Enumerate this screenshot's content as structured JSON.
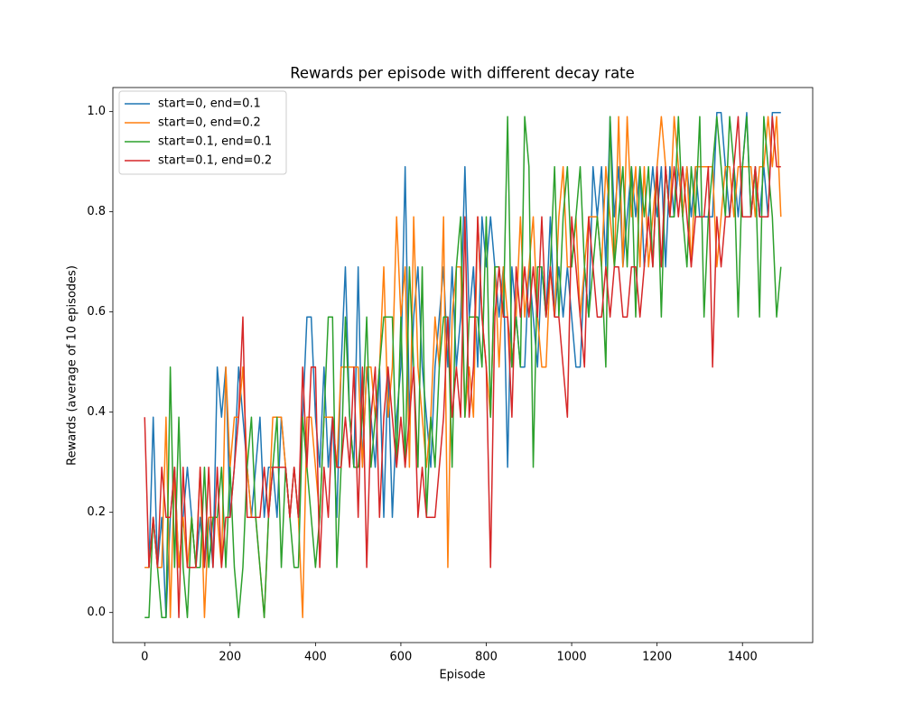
{
  "chart_data": {
    "type": "line",
    "title": "Rewards per episode with different decay rate",
    "xlabel": "Episode",
    "ylabel": "Rewards (average of 10 episodes)",
    "x": [
      0,
      10,
      20,
      30,
      40,
      50,
      60,
      70,
      80,
      90,
      100,
      110,
      120,
      130,
      140,
      150,
      160,
      170,
      180,
      190,
      200,
      210,
      220,
      230,
      240,
      250,
      260,
      270,
      280,
      290,
      300,
      310,
      320,
      330,
      340,
      350,
      360,
      370,
      380,
      390,
      400,
      410,
      420,
      430,
      440,
      450,
      460,
      470,
      480,
      490,
      500,
      510,
      520,
      530,
      540,
      550,
      560,
      570,
      580,
      590,
      600,
      610,
      620,
      630,
      640,
      650,
      660,
      670,
      680,
      690,
      700,
      710,
      720,
      730,
      740,
      750,
      760,
      770,
      780,
      790,
      800,
      810,
      820,
      830,
      840,
      850,
      860,
      870,
      880,
      890,
      900,
      910,
      920,
      930,
      940,
      950,
      960,
      970,
      980,
      990,
      1000,
      1010,
      1020,
      1030,
      1040,
      1050,
      1060,
      1070,
      1080,
      1090,
      1100,
      1110,
      1120,
      1130,
      1140,
      1150,
      1160,
      1170,
      1180,
      1190,
      1200,
      1210,
      1220,
      1230,
      1240,
      1250,
      1260,
      1270,
      1280,
      1290,
      1300,
      1310,
      1320,
      1330,
      1340,
      1350,
      1360,
      1370,
      1380,
      1390,
      1400,
      1410,
      1420,
      1430,
      1440,
      1450,
      1460,
      1470,
      1480,
      1490
    ],
    "series": [
      {
        "name": "start=0, end=0.1",
        "color": "#1f77b4",
        "values": [
          0.09,
          0.09,
          0.39,
          0.09,
          0.19,
          -0.01,
          0.19,
          0.29,
          0.09,
          0.19,
          0.29,
          0.19,
          0.09,
          0.19,
          0.09,
          0.19,
          0.09,
          0.49,
          0.39,
          0.49,
          0.19,
          0.29,
          0.49,
          0.39,
          0.29,
          0.19,
          0.29,
          0.39,
          0.19,
          0.29,
          0.29,
          0.19,
          0.39,
          0.29,
          0.19,
          0.29,
          0.19,
          0.39,
          0.59,
          0.59,
          0.39,
          0.29,
          0.49,
          0.29,
          0.39,
          0.19,
          0.49,
          0.69,
          0.39,
          0.29,
          0.69,
          0.29,
          0.49,
          0.39,
          0.29,
          0.49,
          0.19,
          0.49,
          0.19,
          0.39,
          0.49,
          0.89,
          0.39,
          0.59,
          0.69,
          0.49,
          0.39,
          0.29,
          0.49,
          0.59,
          0.69,
          0.49,
          0.69,
          0.49,
          0.59,
          0.89,
          0.59,
          0.69,
          0.49,
          0.79,
          0.69,
          0.79,
          0.69,
          0.59,
          0.69,
          0.29,
          0.69,
          0.59,
          0.49,
          0.49,
          0.69,
          0.59,
          0.49,
          0.69,
          0.59,
          0.79,
          0.59,
          0.69,
          0.59,
          0.69,
          0.59,
          0.49,
          0.49,
          0.69,
          0.59,
          0.89,
          0.79,
          0.89,
          0.69,
          0.99,
          0.79,
          0.89,
          0.69,
          0.79,
          0.89,
          0.79,
          0.89,
          0.69,
          0.79,
          0.89,
          0.79,
          0.89,
          0.69,
          0.89,
          0.79,
          0.89,
          0.79,
          0.89,
          0.79,
          0.89,
          0.79,
          0.79,
          0.79,
          0.79,
          0.998,
          0.998,
          0.89,
          0.79,
          0.89,
          0.79,
          0.89,
          0.998,
          0.79,
          0.89,
          0.79,
          0.89,
          0.79,
          0.998,
          0.998,
          0.998
        ]
      },
      {
        "name": "start=0, end=0.2",
        "color": "#ff7f0e",
        "values": [
          0.09,
          0.09,
          0.19,
          0.09,
          0.09,
          0.39,
          -0.01,
          0.29,
          0.09,
          0.19,
          0.09,
          0.19,
          0.09,
          0.29,
          -0.01,
          0.19,
          0.19,
          0.19,
          0.09,
          0.49,
          0.29,
          0.39,
          0.39,
          0.49,
          0.29,
          0.19,
          0.19,
          0.09,
          -0.01,
          0.19,
          0.39,
          0.39,
          0.39,
          0.29,
          0.19,
          0.29,
          0.19,
          -0.01,
          0.39,
          0.39,
          0.29,
          0.19,
          0.39,
          0.39,
          0.39,
          0.29,
          0.49,
          0.49,
          0.49,
          0.49,
          0.49,
          0.29,
          0.49,
          0.49,
          0.39,
          0.49,
          0.69,
          0.39,
          0.49,
          0.79,
          0.59,
          0.69,
          0.29,
          0.79,
          0.49,
          0.39,
          0.29,
          0.39,
          0.59,
          0.49,
          0.79,
          0.09,
          0.59,
          0.69,
          0.69,
          0.39,
          0.49,
          0.39,
          0.79,
          0.59,
          0.49,
          0.39,
          0.69,
          0.49,
          0.69,
          0.59,
          0.49,
          0.59,
          0.79,
          0.59,
          0.69,
          0.79,
          0.59,
          0.49,
          0.49,
          0.69,
          0.59,
          0.79,
          0.89,
          0.69,
          0.69,
          0.79,
          0.59,
          0.69,
          0.79,
          0.79,
          0.79,
          0.69,
          0.89,
          0.79,
          0.69,
          0.99,
          0.69,
          0.99,
          0.79,
          0.89,
          0.69,
          0.89,
          0.69,
          0.79,
          0.89,
          0.99,
          0.89,
          0.79,
          0.99,
          0.89,
          0.79,
          0.89,
          0.69,
          0.89,
          0.89,
          0.89,
          0.89,
          0.89,
          0.69,
          0.79,
          0.89,
          0.89,
          0.79,
          0.89,
          0.89,
          0.89,
          0.89,
          0.79,
          0.89,
          0.89,
          0.99,
          0.89,
          0.99,
          0.79
        ]
      },
      {
        "name": "start=0.1, end=0.1",
        "color": "#2ca02c",
        "values": [
          -0.01,
          -0.01,
          0.19,
          0.09,
          -0.01,
          -0.01,
          0.49,
          0.09,
          0.39,
          0.09,
          -0.01,
          0.19,
          0.09,
          0.09,
          0.29,
          0.09,
          0.19,
          0.19,
          0.29,
          0.09,
          0.29,
          0.09,
          -0.01,
          0.09,
          0.29,
          0.39,
          0.19,
          0.09,
          -0.01,
          0.19,
          0.29,
          0.39,
          0.09,
          0.29,
          0.19,
          0.09,
          0.09,
          0.39,
          0.29,
          0.19,
          0.09,
          0.19,
          0.39,
          0.59,
          0.59,
          0.09,
          0.29,
          0.59,
          0.39,
          0.29,
          0.29,
          0.39,
          0.59,
          0.29,
          0.39,
          0.49,
          0.59,
          0.59,
          0.59,
          0.29,
          0.59,
          0.29,
          0.69,
          0.49,
          0.29,
          0.69,
          0.19,
          0.39,
          0.29,
          0.49,
          0.59,
          0.59,
          0.29,
          0.69,
          0.79,
          0.39,
          0.59,
          0.59,
          0.59,
          0.49,
          0.79,
          0.39,
          0.69,
          0.69,
          0.59,
          0.99,
          0.49,
          0.59,
          0.49,
          0.99,
          0.89,
          0.29,
          0.69,
          0.69,
          0.59,
          0.69,
          0.89,
          0.59,
          0.79,
          0.89,
          0.69,
          0.79,
          0.89,
          0.69,
          0.59,
          0.69,
          0.79,
          0.69,
          0.49,
          0.99,
          0.69,
          0.79,
          0.89,
          0.69,
          0.89,
          0.59,
          0.89,
          0.79,
          0.89,
          0.69,
          0.89,
          0.59,
          0.89,
          0.79,
          0.79,
          0.99,
          0.79,
          0.69,
          0.89,
          0.79,
          0.99,
          0.59,
          0.79,
          0.89,
          0.99,
          0.89,
          0.79,
          0.99,
          0.89,
          0.59,
          0.89,
          0.99,
          0.79,
          0.89,
          0.59,
          0.99,
          0.89,
          0.79,
          0.59,
          0.69
        ]
      },
      {
        "name": "start=0.1, end=0.2",
        "color": "#d62728",
        "values": [
          0.39,
          0.09,
          0.19,
          0.09,
          0.29,
          0.19,
          0.19,
          0.29,
          -0.01,
          0.29,
          0.09,
          0.09,
          0.09,
          0.29,
          0.09,
          0.29,
          0.09,
          0.29,
          0.09,
          0.19,
          0.19,
          0.29,
          0.39,
          0.59,
          0.19,
          0.19,
          0.19,
          0.19,
          0.29,
          0.19,
          0.29,
          0.29,
          0.29,
          0.29,
          0.19,
          0.29,
          0.19,
          0.49,
          0.29,
          0.49,
          0.49,
          0.09,
          0.29,
          0.19,
          0.39,
          0.29,
          0.29,
          0.39,
          0.29,
          0.49,
          0.19,
          0.49,
          0.09,
          0.39,
          0.49,
          0.19,
          0.39,
          0.49,
          0.39,
          0.29,
          0.39,
          0.29,
          0.39,
          0.49,
          0.19,
          0.29,
          0.19,
          0.19,
          0.19,
          0.29,
          0.39,
          0.59,
          0.39,
          0.49,
          0.39,
          0.79,
          0.39,
          0.49,
          0.79,
          0.59,
          0.49,
          0.09,
          0.59,
          0.69,
          0.59,
          0.59,
          0.39,
          0.69,
          0.59,
          0.69,
          0.59,
          0.69,
          0.59,
          0.79,
          0.59,
          0.69,
          0.59,
          0.59,
          0.49,
          0.39,
          0.79,
          0.69,
          0.59,
          0.49,
          0.79,
          0.69,
          0.59,
          0.59,
          0.69,
          0.59,
          0.69,
          0.69,
          0.59,
          0.59,
          0.69,
          0.69,
          0.59,
          0.69,
          0.79,
          0.69,
          0.89,
          0.69,
          0.89,
          0.79,
          0.89,
          0.79,
          0.89,
          0.79,
          0.69,
          0.79,
          0.79,
          0.79,
          0.89,
          0.49,
          0.79,
          0.69,
          0.79,
          0.79,
          0.89,
          0.99,
          0.79,
          0.79,
          0.79,
          0.89,
          0.79,
          0.79,
          0.79,
          0.99,
          0.89,
          0.89
        ]
      }
    ],
    "xlim": [
      -74.5,
      1564.5
    ],
    "xticks": [
      0,
      200,
      400,
      600,
      800,
      1000,
      1200,
      1400
    ],
    "ylim": [
      -0.06,
      1.048
    ],
    "yticks": [
      {
        "value": 0,
        "label": "0.0"
      },
      0.2,
      0.4,
      0.6,
      0.8,
      {
        "value": 1,
        "label": "1.0"
      }
    ],
    "legend": "upper left"
  }
}
